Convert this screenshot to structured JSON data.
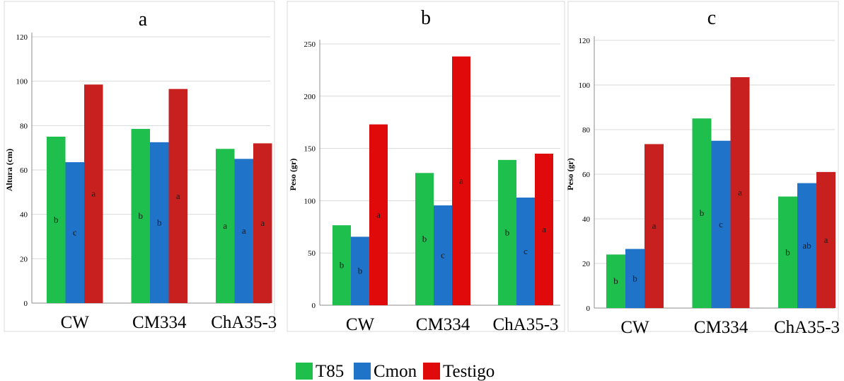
{
  "colors": {
    "T85": "#1fbf4e",
    "Cmon": "#1f73c9",
    "Testigo_a": "#c8201e",
    "Testigo_bc": "#e00a0a",
    "grid": "#d9d9d9"
  },
  "legend": [
    "T85",
    "Cmon",
    "Testigo"
  ],
  "chart_data": [
    {
      "type": "bar",
      "title": "a",
      "ylabel": "Altura (cm)",
      "ylim": [
        0,
        120
      ],
      "yticks": [
        0,
        20,
        40,
        60,
        80,
        100,
        120
      ],
      "categories": [
        "CW",
        "CM334",
        "ChA35-3"
      ],
      "series": [
        {
          "name": "T85",
          "values": [
            75,
            78.5,
            69.5
          ],
          "letters": [
            "b",
            "b",
            "a"
          ]
        },
        {
          "name": "Cmon",
          "values": [
            63.5,
            72.5,
            65
          ],
          "letters": [
            "c",
            "b",
            "a"
          ]
        },
        {
          "name": "Testigo",
          "values": [
            98.5,
            96.5,
            72
          ],
          "letters": [
            "a",
            "a",
            "a"
          ]
        }
      ],
      "grid": true
    },
    {
      "type": "bar",
      "title": "b",
      "ylabel": "Peso (gr)",
      "ylim": [
        0,
        250
      ],
      "yticks": [
        0,
        50,
        100,
        150,
        200,
        250
      ],
      "categories": [
        "CW",
        "CM334",
        "ChA35-3"
      ],
      "series": [
        {
          "name": "T85",
          "values": [
            76.5,
            126.5,
            139
          ],
          "letters": [
            "b",
            "b",
            "b"
          ]
        },
        {
          "name": "Cmon",
          "values": [
            65.5,
            95.5,
            103
          ],
          "letters": [
            "b",
            "c",
            "c"
          ]
        },
        {
          "name": "Testigo",
          "values": [
            173,
            238,
            145
          ],
          "letters": [
            "a",
            "a",
            "a"
          ]
        }
      ],
      "grid": true
    },
    {
      "type": "bar",
      "title": "c",
      "ylabel": "Peso (gr)",
      "ylim": [
        0,
        120
      ],
      "yticks": [
        0,
        20,
        40,
        60,
        80,
        100,
        120
      ],
      "categories": [
        "CW",
        "CM334",
        "ChA35-3"
      ],
      "series": [
        {
          "name": "T85",
          "values": [
            24,
            85,
            50
          ],
          "letters": [
            "b",
            "b",
            "b"
          ]
        },
        {
          "name": "Cmon",
          "values": [
            26.5,
            75,
            56
          ],
          "letters": [
            "b",
            "c",
            "ab"
          ]
        },
        {
          "name": "Testigo",
          "values": [
            73.5,
            103.5,
            61
          ],
          "letters": [
            "a",
            "a",
            "a"
          ]
        }
      ],
      "grid": true
    }
  ]
}
